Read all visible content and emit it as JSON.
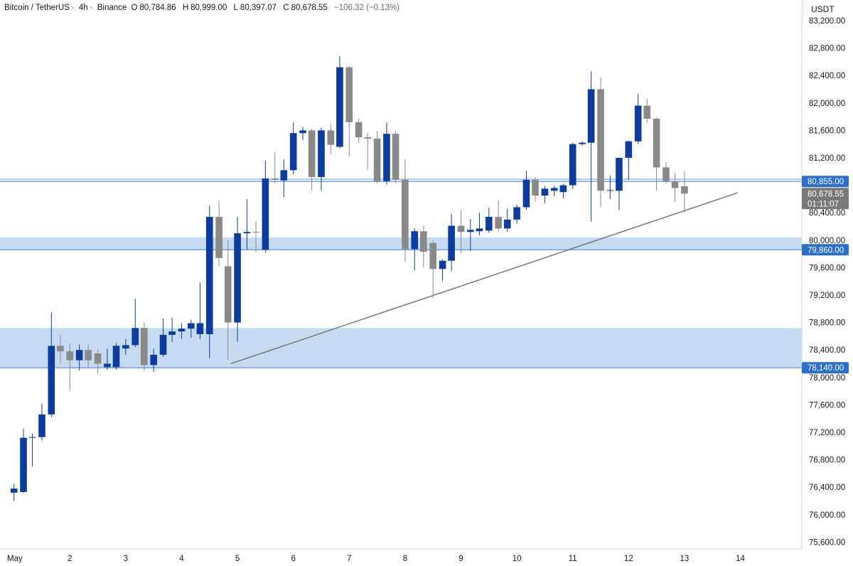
{
  "header": {
    "symbol": "Bitcoin / TetherUS",
    "interval": "4h",
    "exchange": "Binance",
    "open_label": "O",
    "open": "80,784.86",
    "high_label": "H",
    "high": "80,999.00",
    "low_label": "L",
    "low": "80,397.07",
    "close_label": "C",
    "close": "80,678.55",
    "change": "−106.32 (−0.13%)"
  },
  "currency": "USDT",
  "colors": {
    "up": "#0c3c9e",
    "down": "#898989",
    "zone": "#bcd5ef",
    "level_line": "#3c7dd0",
    "trendline": "#707070",
    "tag_blue": "#2b6fcb",
    "tag_gray": "#787878"
  },
  "chart_data": {
    "type": "candlestick",
    "x_ticks": [
      "May",
      "2",
      "3",
      "4",
      "5",
      "6",
      "7",
      "8",
      "9",
      "10",
      "11",
      "12",
      "13",
      "14"
    ],
    "y_ticks": [
      "83,200.00",
      "82,800.00",
      "82,400.00",
      "82,000.00",
      "81,600.00",
      "81,200.00",
      "80,400.00",
      "80,000.00",
      "79,600.00",
      "79,200.00",
      "78,800.00",
      "78,400.00",
      "78,000.00",
      "77,600.00",
      "77,200.00",
      "76,800.00",
      "76,400.00",
      "76,000.00",
      "75,600.00"
    ],
    "y_tick_values": [
      83200,
      82800,
      82400,
      82000,
      81600,
      81200,
      80400,
      80000,
      79600,
      79200,
      78800,
      78400,
      78000,
      77600,
      77200,
      76800,
      76400,
      76000,
      75600
    ],
    "ylim": [
      75500,
      83500
    ],
    "x_range": [
      -0.25,
      14.1
    ],
    "candles": [
      {
        "t": 0.0,
        "o": 76320,
        "h": 76450,
        "l": 76200,
        "c": 76380
      },
      {
        "t": 0.17,
        "o": 76330,
        "h": 77250,
        "l": 76320,
        "c": 77120
      },
      {
        "t": 0.33,
        "o": 77120,
        "h": 77180,
        "l": 76700,
        "c": 77130
      },
      {
        "t": 0.5,
        "o": 77130,
        "h": 77620,
        "l": 77080,
        "c": 77460
      },
      {
        "t": 0.67,
        "o": 77460,
        "h": 78950,
        "l": 77420,
        "c": 78460
      },
      {
        "t": 0.83,
        "o": 78460,
        "h": 78620,
        "l": 78200,
        "c": 78380
      },
      {
        "t": 1.0,
        "o": 78380,
        "h": 78500,
        "l": 77800,
        "c": 78250
      },
      {
        "t": 1.17,
        "o": 78250,
        "h": 78480,
        "l": 78100,
        "c": 78400
      },
      {
        "t": 1.33,
        "o": 78400,
        "h": 78480,
        "l": 78150,
        "c": 78250
      },
      {
        "t": 1.5,
        "o": 78350,
        "h": 78420,
        "l": 78050,
        "c": 78200
      },
      {
        "t": 1.67,
        "o": 78150,
        "h": 78420,
        "l": 78110,
        "c": 78200
      },
      {
        "t": 1.83,
        "o": 78150,
        "h": 78500,
        "l": 78110,
        "c": 78460
      },
      {
        "t": 2.0,
        "o": 78420,
        "h": 78560,
        "l": 78330,
        "c": 78470
      },
      {
        "t": 2.17,
        "o": 78470,
        "h": 79150,
        "l": 78440,
        "c": 78720
      },
      {
        "t": 2.33,
        "o": 78720,
        "h": 78800,
        "l": 78100,
        "c": 78180
      },
      {
        "t": 2.5,
        "o": 78180,
        "h": 78420,
        "l": 78080,
        "c": 78330
      },
      {
        "t": 2.67,
        "o": 78330,
        "h": 78860,
        "l": 78300,
        "c": 78620
      },
      {
        "t": 2.83,
        "o": 78620,
        "h": 78870,
        "l": 78520,
        "c": 78670
      },
      {
        "t": 3.0,
        "o": 78670,
        "h": 78790,
        "l": 78560,
        "c": 78710
      },
      {
        "t": 3.17,
        "o": 78710,
        "h": 78840,
        "l": 78580,
        "c": 78790
      },
      {
        "t": 3.33,
        "o": 78630,
        "h": 79380,
        "l": 78560,
        "c": 78790
      },
      {
        "t": 3.5,
        "o": 78630,
        "h": 80500,
        "l": 78280,
        "c": 80340
      },
      {
        "t": 3.67,
        "o": 80340,
        "h": 80570,
        "l": 79620,
        "c": 79740
      },
      {
        "t": 3.83,
        "o": 79620,
        "h": 80000,
        "l": 78260,
        "c": 78800
      },
      {
        "t": 4.0,
        "o": 78800,
        "h": 80340,
        "l": 78520,
        "c": 80100
      },
      {
        "t": 4.17,
        "o": 80100,
        "h": 80600,
        "l": 79860,
        "c": 80120
      },
      {
        "t": 4.33,
        "o": 80120,
        "h": 80280,
        "l": 79830,
        "c": 80110
      },
      {
        "t": 4.5,
        "o": 79860,
        "h": 81160,
        "l": 79820,
        "c": 80900
      },
      {
        "t": 4.67,
        "o": 80900,
        "h": 81280,
        "l": 80830,
        "c": 80880
      },
      {
        "t": 4.83,
        "o": 80870,
        "h": 81180,
        "l": 80630,
        "c": 81020
      },
      {
        "t": 5.0,
        "o": 81020,
        "h": 81720,
        "l": 80960,
        "c": 81560
      },
      {
        "t": 5.17,
        "o": 81560,
        "h": 81650,
        "l": 81460,
        "c": 81600
      },
      {
        "t": 5.33,
        "o": 81600,
        "h": 81620,
        "l": 80720,
        "c": 80920
      },
      {
        "t": 5.5,
        "o": 80920,
        "h": 81640,
        "l": 80720,
        "c": 81600
      },
      {
        "t": 5.67,
        "o": 81600,
        "h": 81690,
        "l": 81250,
        "c": 81390
      },
      {
        "t": 5.83,
        "o": 81360,
        "h": 82680,
        "l": 81340,
        "c": 82520
      },
      {
        "t": 6.0,
        "o": 82520,
        "h": 82540,
        "l": 81220,
        "c": 81720
      },
      {
        "t": 6.17,
        "o": 81720,
        "h": 81770,
        "l": 81420,
        "c": 81500
      },
      {
        "t": 6.33,
        "o": 81500,
        "h": 81560,
        "l": 81030,
        "c": 81480
      },
      {
        "t": 6.5,
        "o": 81480,
        "h": 81590,
        "l": 80830,
        "c": 80860
      },
      {
        "t": 6.67,
        "o": 80860,
        "h": 81720,
        "l": 80810,
        "c": 81550
      },
      {
        "t": 6.83,
        "o": 81550,
        "h": 81590,
        "l": 80830,
        "c": 80880
      },
      {
        "t": 7.0,
        "o": 80880,
        "h": 81180,
        "l": 79690,
        "c": 79870
      },
      {
        "t": 7.17,
        "o": 79870,
        "h": 80170,
        "l": 79560,
        "c": 80130
      },
      {
        "t": 7.33,
        "o": 80130,
        "h": 80210,
        "l": 79600,
        "c": 79830
      },
      {
        "t": 7.5,
        "o": 79960,
        "h": 79990,
        "l": 79150,
        "c": 79580
      },
      {
        "t": 7.67,
        "o": 79580,
        "h": 79720,
        "l": 79400,
        "c": 79700
      },
      {
        "t": 7.83,
        "o": 79700,
        "h": 80380,
        "l": 79550,
        "c": 80210
      },
      {
        "t": 8.0,
        "o": 80210,
        "h": 80440,
        "l": 79810,
        "c": 80120
      },
      {
        "t": 8.17,
        "o": 80120,
        "h": 80310,
        "l": 79840,
        "c": 80150
      },
      {
        "t": 8.33,
        "o": 80130,
        "h": 80400,
        "l": 80070,
        "c": 80170
      },
      {
        "t": 8.5,
        "o": 80140,
        "h": 80470,
        "l": 80110,
        "c": 80340
      },
      {
        "t": 8.67,
        "o": 80340,
        "h": 80580,
        "l": 80120,
        "c": 80170
      },
      {
        "t": 8.83,
        "o": 80170,
        "h": 80460,
        "l": 80120,
        "c": 80300
      },
      {
        "t": 9.0,
        "o": 80300,
        "h": 80520,
        "l": 80240,
        "c": 80480
      },
      {
        "t": 9.17,
        "o": 80480,
        "h": 81010,
        "l": 80440,
        "c": 80880
      },
      {
        "t": 9.33,
        "o": 80880,
        "h": 80920,
        "l": 80560,
        "c": 80650
      },
      {
        "t": 9.5,
        "o": 80650,
        "h": 80790,
        "l": 80540,
        "c": 80750
      },
      {
        "t": 9.67,
        "o": 80720,
        "h": 80790,
        "l": 80640,
        "c": 80760
      },
      {
        "t": 9.83,
        "o": 80700,
        "h": 80820,
        "l": 80610,
        "c": 80800
      },
      {
        "t": 10.0,
        "o": 80800,
        "h": 81420,
        "l": 80750,
        "c": 81400
      },
      {
        "t": 10.17,
        "o": 81400,
        "h": 81440,
        "l": 81380,
        "c": 81420
      },
      {
        "t": 10.33,
        "o": 81420,
        "h": 82460,
        "l": 80270,
        "c": 82200
      },
      {
        "t": 10.5,
        "o": 82200,
        "h": 82370,
        "l": 80480,
        "c": 80720
      },
      {
        "t": 10.67,
        "o": 80720,
        "h": 80940,
        "l": 80600,
        "c": 80730
      },
      {
        "t": 10.83,
        "o": 80720,
        "h": 81170,
        "l": 80440,
        "c": 81200
      },
      {
        "t": 11.0,
        "o": 81200,
        "h": 81450,
        "l": 80880,
        "c": 81440
      },
      {
        "t": 11.17,
        "o": 81440,
        "h": 82130,
        "l": 81400,
        "c": 81960
      },
      {
        "t": 11.33,
        "o": 81960,
        "h": 82060,
        "l": 81710,
        "c": 81770
      },
      {
        "t": 11.5,
        "o": 81770,
        "h": 81790,
        "l": 80720,
        "c": 81060
      },
      {
        "t": 11.67,
        "o": 81060,
        "h": 81140,
        "l": 80820,
        "c": 80860
      },
      {
        "t": 11.83,
        "o": 80860,
        "h": 80980,
        "l": 80560,
        "c": 80760
      },
      {
        "t": 12.0,
        "o": 80784.86,
        "h": 80999,
        "l": 80397.07,
        "c": 80678.55
      }
    ],
    "zones": [
      {
        "from": 79860,
        "to": 80040
      },
      {
        "from": 78140,
        "to": 78720
      }
    ],
    "levels": [
      {
        "value": 80855,
        "label": "80,855.00",
        "style": "blue",
        "double": true
      },
      {
        "value": 79860,
        "label": "79,860.00",
        "style": "blue"
      },
      {
        "value": 78140,
        "label": "78,140.00",
        "style": "blue"
      }
    ],
    "trendline": {
      "t1": 3.88,
      "p1": 78200,
      "t2": 12.95,
      "p2": 80690
    },
    "last_price_tag": {
      "value": 80678.55,
      "price": "80,678.55",
      "countdown": "01:11:07"
    }
  }
}
